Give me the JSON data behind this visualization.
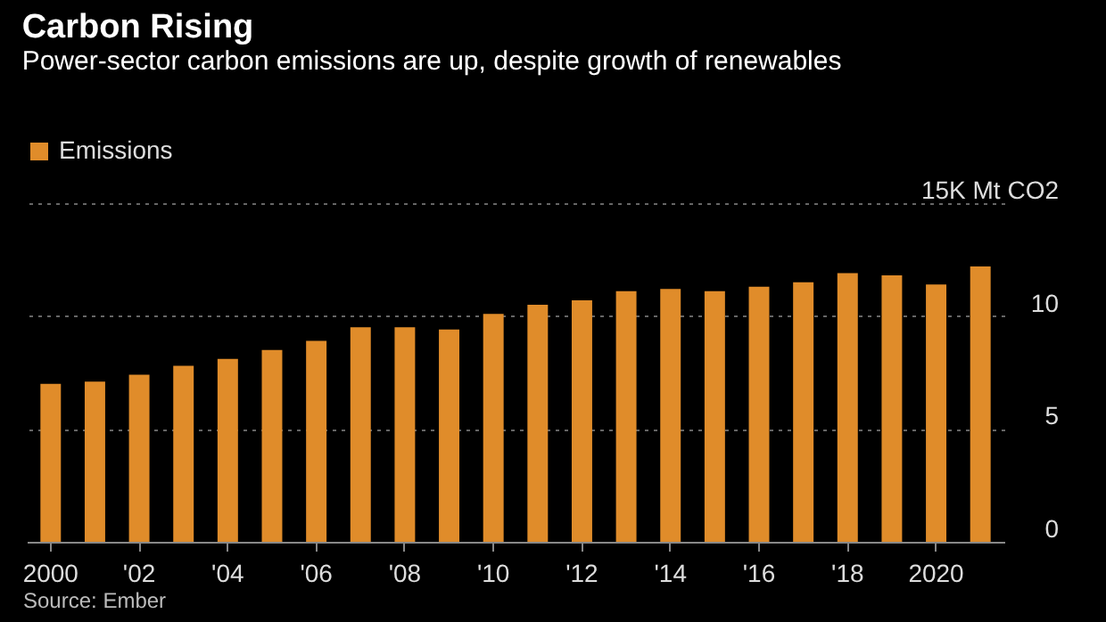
{
  "chart_data": {
    "type": "bar",
    "title": "Carbon Rising",
    "subtitle": "Power-sector carbon emissions are up, despite growth of renewables",
    "categories": [
      "2000",
      null,
      "'02",
      null,
      "'04",
      null,
      "'06",
      null,
      "'08",
      null,
      "'10",
      null,
      "'12",
      null,
      "'14",
      null,
      "'16",
      null,
      "'18",
      null,
      "2020",
      null
    ],
    "series": [
      {
        "name": "Emissions",
        "color": "#e08c2a",
        "values": [
          7.0,
          7.1,
          7.4,
          7.8,
          8.1,
          8.5,
          8.9,
          9.5,
          9.5,
          9.4,
          10.1,
          10.5,
          10.7,
          11.1,
          11.2,
          11.1,
          11.3,
          11.5,
          11.9,
          11.8,
          11.4,
          12.2
        ]
      }
    ],
    "ylim": [
      0,
      15
    ],
    "yticks": [
      0,
      5,
      10,
      {
        "value": 15,
        "label": "15K Mt CO2"
      }
    ],
    "grid": "y",
    "legend": "top left",
    "annotations": [
      "Source: Ember"
    ]
  }
}
